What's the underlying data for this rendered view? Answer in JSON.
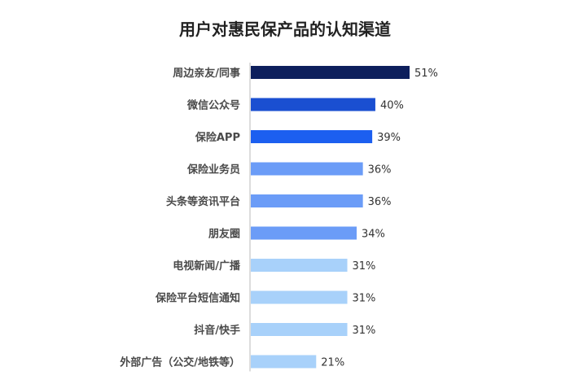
{
  "chart_data": {
    "type": "bar",
    "orientation": "horizontal",
    "title": "用户对惠民保产品的认知渠道",
    "categories": [
      "周边亲友/同事",
      "微信公众号",
      "保险APP",
      "保险业务员",
      "头条等资讯平台",
      "朋友圈",
      "电视新闻/广播",
      "保险平台短信通知",
      "抖音/快手",
      "外部广告（公交/地铁等）"
    ],
    "values": [
      51,
      40,
      39,
      36,
      36,
      34,
      31,
      31,
      31,
      21
    ],
    "value_labels": [
      "51%",
      "40%",
      "39%",
      "36%",
      "36%",
      "34%",
      "31%",
      "31%",
      "31%",
      "21%"
    ],
    "bar_colors": [
      "#0d1f5c",
      "#1a4fd1",
      "#1c5ff0",
      "#6b9cf7",
      "#6b9cf7",
      "#6b9cf7",
      "#a8d1fa",
      "#a8d1fa",
      "#a8d1fa",
      "#a8d1fa"
    ],
    "xlim": [
      0,
      60
    ],
    "grid": false,
    "legend": "none"
  }
}
